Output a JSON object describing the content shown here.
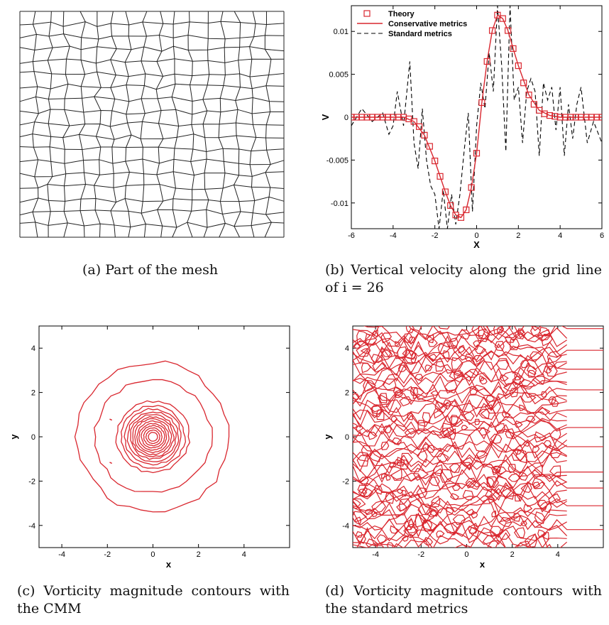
{
  "captions": {
    "a": "(a)  Part of the mesh",
    "b": "(b)  Vertical velocity along the grid line of i = 26",
    "c": "(c)  Vorticity magnitude contours with the CMM",
    "d": "(d)  Vorticity magnitude contours with the standard metrics"
  },
  "chart_data": [
    {
      "id": "a",
      "type": "mesh",
      "title": "",
      "xlabel": "",
      "ylabel": "",
      "grid_lines_x": 18,
      "grid_lines_y": 19
    },
    {
      "id": "b",
      "type": "line",
      "xlabel": "X",
      "ylabel": "V",
      "xlim": [
        -6,
        6
      ],
      "ylim": [
        -0.013,
        0.013
      ],
      "xticks": [
        "-6",
        "-4",
        "-2",
        "0",
        "2",
        "4",
        "6"
      ],
      "yticks": [
        "-0.01",
        "-0.005",
        "0",
        "0.005",
        "0.01"
      ],
      "legend": "top-left",
      "colors": {
        "theory": "#d9262e",
        "conservative": "#d9262e",
        "standard": "#000000"
      },
      "series": [
        {
          "name": "Theory",
          "style": "markers-square",
          "x": [
            -6.0,
            -5.75,
            -5.5,
            -5.25,
            -5.0,
            -4.75,
            -4.5,
            -4.25,
            -4.0,
            -3.75,
            -3.5,
            -3.25,
            -3.0,
            -2.75,
            -2.5,
            -2.25,
            -2.0,
            -1.75,
            -1.5,
            -1.25,
            -1.0,
            -0.75,
            -0.5,
            -0.25,
            0.0,
            0.25,
            0.5,
            0.75,
            1.0,
            1.25,
            1.5,
            1.75,
            2.0,
            2.25,
            2.5,
            2.75,
            3.0,
            3.25,
            3.5,
            3.75,
            4.0,
            4.25,
            4.5,
            4.75,
            5.0,
            5.25,
            5.5,
            5.75,
            6.0
          ],
          "y": [
            0,
            0,
            0,
            0,
            0,
            0,
            0,
            0,
            0,
            0,
            0,
            -0.0002,
            -0.0005,
            -0.0011,
            -0.0021,
            -0.0034,
            -0.0051,
            -0.0069,
            -0.0087,
            -0.0103,
            -0.0114,
            -0.0117,
            -0.0108,
            -0.0082,
            -0.0042,
            0.0017,
            0.0065,
            0.0101,
            0.0119,
            0.0115,
            0.0101,
            0.008,
            0.006,
            0.004,
            0.0026,
            0.0015,
            0.0008,
            0.0004,
            0.0002,
            0.0001,
            0,
            0,
            0,
            0,
            0,
            0,
            0,
            0,
            0
          ]
        },
        {
          "name": "Conservative metrics",
          "style": "solid",
          "x": [
            -6.0,
            -3.5,
            -3.0,
            -2.5,
            -2.0,
            -1.5,
            -1.25,
            -1.0,
            -0.75,
            -0.5,
            -0.25,
            0.0,
            0.25,
            0.5,
            0.75,
            1.0,
            1.25,
            1.5,
            1.75,
            2.0,
            2.5,
            3.0,
            3.5,
            4.0,
            6.0
          ],
          "y": [
            0,
            0,
            -0.0005,
            -0.0021,
            -0.0051,
            -0.0087,
            -0.0103,
            -0.0114,
            -0.0117,
            -0.0108,
            -0.0082,
            -0.0042,
            0.0017,
            0.0065,
            0.0101,
            0.0119,
            0.0115,
            0.0101,
            0.008,
            0.006,
            0.0026,
            0.0008,
            0.0002,
            0,
            0
          ]
        },
        {
          "name": "Standard metrics",
          "style": "dashed",
          "x": [
            -6.0,
            -5.5,
            -5.0,
            -4.5,
            -4.2,
            -4.0,
            -3.8,
            -3.5,
            -3.2,
            -3.0,
            -2.8,
            -2.6,
            -2.4,
            -2.2,
            -2.0,
            -1.8,
            -1.6,
            -1.4,
            -1.2,
            -1.0,
            -0.8,
            -0.6,
            -0.4,
            -0.2,
            0.0,
            0.2,
            0.4,
            0.6,
            0.8,
            1.0,
            1.2,
            1.4,
            1.6,
            1.8,
            2.0,
            2.2,
            2.4,
            2.6,
            2.8,
            3.0,
            3.2,
            3.4,
            3.6,
            3.8,
            4.0,
            4.2,
            4.4,
            4.6,
            4.8,
            5.0,
            5.3,
            5.6,
            6.0
          ],
          "y": [
            -0.001,
            0.001,
            -0.0005,
            0.0005,
            -0.002,
            -0.001,
            0.003,
            -0.001,
            0.0065,
            -0.003,
            -0.006,
            0.001,
            -0.005,
            -0.008,
            -0.009,
            -0.013,
            -0.0085,
            -0.013,
            -0.009,
            -0.0125,
            -0.009,
            -0.004,
            0.0005,
            -0.011,
            -0.001,
            0.004,
            0.001,
            0.0075,
            0.003,
            0.013,
            0.006,
            -0.004,
            0.013,
            0.002,
            0.0035,
            -0.003,
            0.003,
            0.0045,
            0.003,
            -0.0045,
            0.004,
            0.002,
            0.0035,
            -0.0015,
            0.0035,
            -0.0045,
            0.0015,
            -0.0025,
            0.0015,
            0.0035,
            -0.003,
            -0.0005,
            -0.003
          ]
        }
      ]
    },
    {
      "id": "c",
      "type": "contour",
      "xlabel": "x",
      "ylabel": "y",
      "xlim": [
        -5,
        6
      ],
      "ylim": [
        -5,
        5
      ],
      "xticks": [
        "-4",
        "-2",
        "0",
        "2",
        "4"
      ],
      "yticks": [
        "-4",
        "-2",
        "0",
        "2",
        "4"
      ],
      "color": "#d9262e",
      "levels_radius": [
        3.35,
        2.55,
        1.6,
        1.4,
        1.25,
        1.12,
        1.0,
        0.9,
        0.8,
        0.7,
        0.6,
        0.5,
        0.4,
        0.3,
        0.2
      ]
    },
    {
      "id": "d",
      "type": "contour",
      "xlabel": "x",
      "ylabel": "y",
      "xlim": [
        -5,
        6
      ],
      "ylim": [
        -5,
        5
      ],
      "xticks": [
        "-4",
        "-2",
        "0",
        "2",
        "4"
      ],
      "yticks": [
        "-4",
        "-2",
        "0",
        "2",
        "4"
      ],
      "color": "#d9262e",
      "noise_region_x": [
        -5,
        4
      ]
    }
  ]
}
